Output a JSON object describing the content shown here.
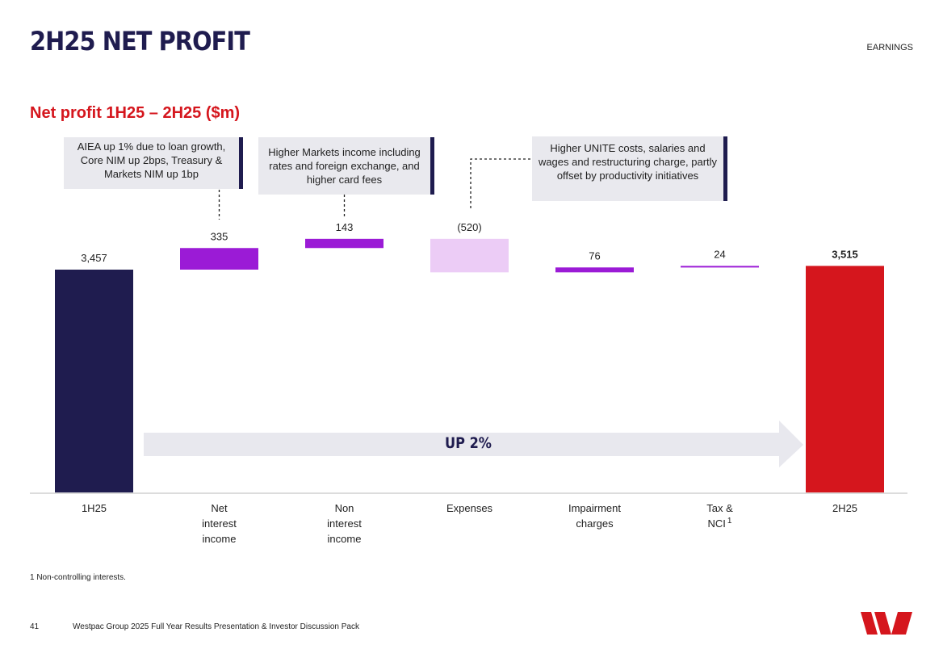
{
  "header": {
    "title": "2H25 NET PROFIT",
    "section": "EARNINGS"
  },
  "chart_data": {
    "type": "bar",
    "subtype": "waterfall",
    "title": "Net profit 1H25 – 2H25 ($m)",
    "categories": [
      {
        "label_lines": [
          "1H25"
        ],
        "superscript": ""
      },
      {
        "label_lines": [
          "Net",
          "interest",
          "income"
        ],
        "superscript": ""
      },
      {
        "label_lines": [
          "Non",
          "interest",
          "income"
        ],
        "superscript": ""
      },
      {
        "label_lines": [
          "Expenses"
        ],
        "superscript": ""
      },
      {
        "label_lines": [
          "Impairment",
          "charges"
        ],
        "superscript": ""
      },
      {
        "label_lines": [
          "Tax &",
          "NCI"
        ],
        "superscript": "1"
      },
      {
        "label_lines": [
          "2H25"
        ],
        "superscript": ""
      }
    ],
    "values": [
      3457,
      335,
      143,
      -520,
      76,
      24,
      3515
    ],
    "value_labels": [
      "3,457",
      "335",
      "143",
      "(520)",
      "76",
      "24",
      "3,515"
    ],
    "kinds": [
      "total",
      "increase",
      "increase",
      "decrease",
      "increase",
      "increase",
      "total"
    ],
    "colors": {
      "start_total": "#1f1c4f",
      "increase": "#9b1bd6",
      "decrease": "#ecccf6",
      "end_total": "#d5161d"
    },
    "annotations": [
      "AIEA up 1% due to loan growth, Core NIM up 2bps, Treasury & Markets NIM up 1bp",
      "Higher Markets income including rates and foreign exchange, and higher card fees",
      "Higher UNITE costs, salaries and wages and restructuring charge, partly offset by productivity initiatives"
    ],
    "arrow_label": "UP 2%",
    "legend": "none",
    "grid": false
  },
  "callouts": {
    "nii": "AIEA up 1% due to loan growth, Core NIM up 2bps, Treasury & Markets NIM up 1bp",
    "non_ii": "Higher Markets income including rates and foreign exchange, and higher card fees",
    "expenses": "Higher UNITE costs, salaries and wages and restructuring charge, partly offset by productivity initiatives"
  },
  "footer": {
    "footnote": "1 Non-controlling interests.",
    "page_number": "41",
    "document": "Westpac Group 2025 Full Year Results Presentation & Investor Discussion Pack"
  },
  "logo": {
    "icon": "westpac-logo-icon",
    "color": "#d5161d"
  }
}
